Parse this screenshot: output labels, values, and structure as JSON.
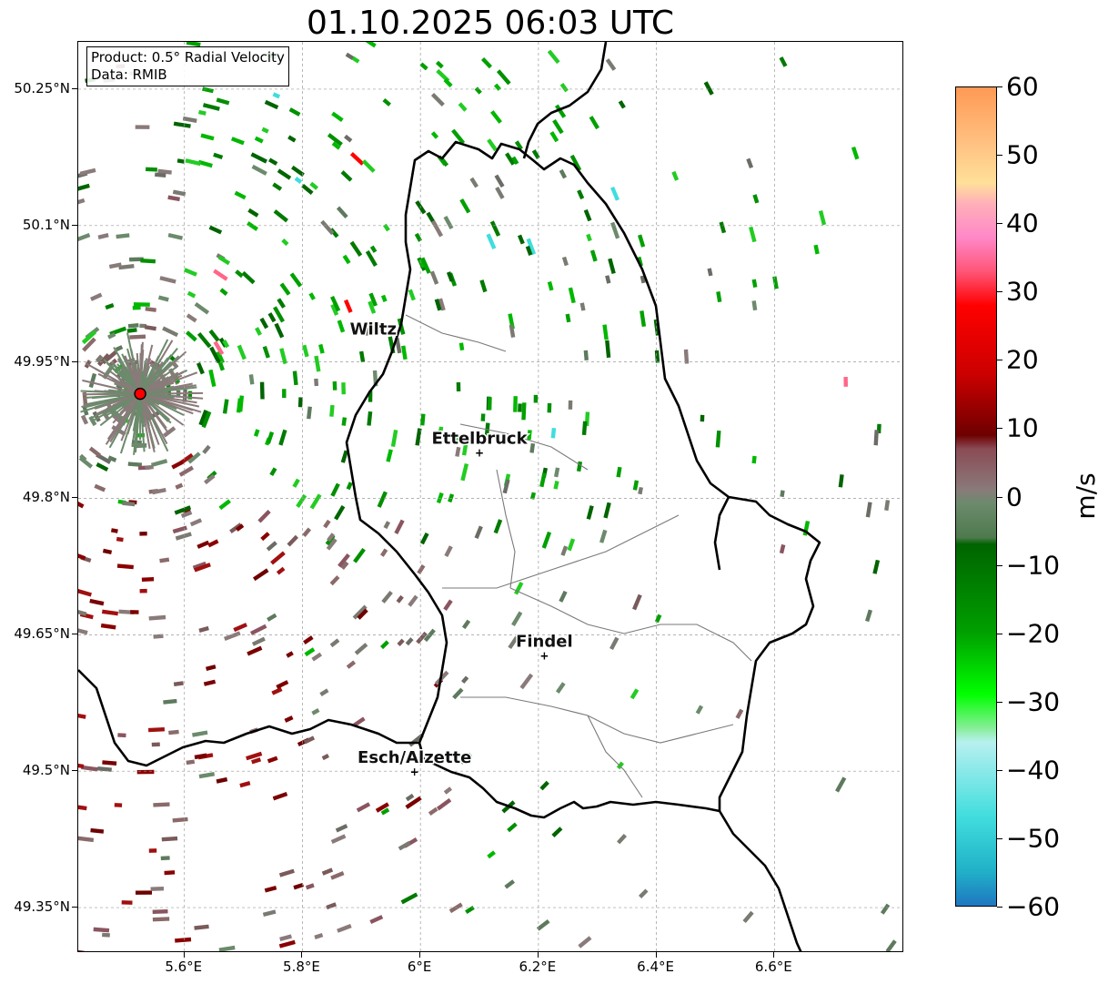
{
  "title": "01.10.2025 06:03 UTC",
  "info": {
    "product": "Product: 0.5° Radial Velocity",
    "data": "Data: RMIB"
  },
  "map": {
    "lon_range": [
      5.42,
      6.82
    ],
    "lat_range": [
      49.3,
      50.302
    ],
    "x_ticks": [
      "5.6°E",
      "5.8°E",
      "6°E",
      "6.2°E",
      "6.4°E",
      "6.6°E"
    ],
    "x_tick_values": [
      5.6,
      5.8,
      6.0,
      6.2,
      6.4,
      6.6
    ],
    "y_ticks": [
      "50.25°N",
      "50.1°N",
      "49.95°N",
      "49.8°N",
      "49.65°N",
      "49.5°N",
      "49.35°N"
    ],
    "y_tick_values": [
      50.25,
      50.1,
      49.95,
      49.8,
      49.65,
      49.5,
      49.35
    ],
    "radar_site": {
      "lon": 5.525,
      "lat": 49.915
    },
    "cities": [
      {
        "name": "Wiltz",
        "lon": 5.92,
        "lat": 49.97,
        "marker": false
      },
      {
        "name": "Ettelbruck",
        "lon": 6.1,
        "lat": 49.85,
        "marker": true
      },
      {
        "name": "Findel",
        "lon": 6.21,
        "lat": 49.627,
        "marker": true
      },
      {
        "name": "Esch/Alzette",
        "lon": 5.99,
        "lat": 49.499,
        "marker": true
      }
    ]
  },
  "colorbar": {
    "label": "m/s",
    "min": -60,
    "max": 60,
    "ticks": [
      "60",
      "50",
      "40",
      "30",
      "20",
      "10",
      "0",
      "−10",
      "−20",
      "−30",
      "−40",
      "−50",
      "−60"
    ],
    "tick_values": [
      60,
      50,
      40,
      30,
      20,
      10,
      0,
      -10,
      -20,
      -30,
      -40,
      -50,
      -60
    ],
    "stops": [
      {
        "v": 60,
        "color": "#ff9955"
      },
      {
        "v": 52,
        "color": "#ffc080"
      },
      {
        "v": 46,
        "color": "#ffe09a"
      },
      {
        "v": 43,
        "color": "#ffb0b8"
      },
      {
        "v": 38,
        "color": "#ff88c8"
      },
      {
        "v": 33,
        "color": "#ff5577"
      },
      {
        "v": 28,
        "color": "#ff0000"
      },
      {
        "v": 18,
        "color": "#cc0000"
      },
      {
        "v": 9,
        "color": "#6e0000"
      },
      {
        "v": 7,
        "color": "#8a4b55"
      },
      {
        "v": 1,
        "color": "#8a7a7a"
      },
      {
        "v": -1,
        "color": "#6c8a6c"
      },
      {
        "v": -6,
        "color": "#4e7a4e"
      },
      {
        "v": -7,
        "color": "#006400"
      },
      {
        "v": -20,
        "color": "#00a000"
      },
      {
        "v": -29,
        "color": "#00ff00"
      },
      {
        "v": -34,
        "color": "#88ee99"
      },
      {
        "v": -36,
        "color": "#b8f0f0"
      },
      {
        "v": -47,
        "color": "#40dddd"
      },
      {
        "v": -55,
        "color": "#20b0c8"
      },
      {
        "v": -60,
        "color": "#1f77c0"
      }
    ]
  }
}
